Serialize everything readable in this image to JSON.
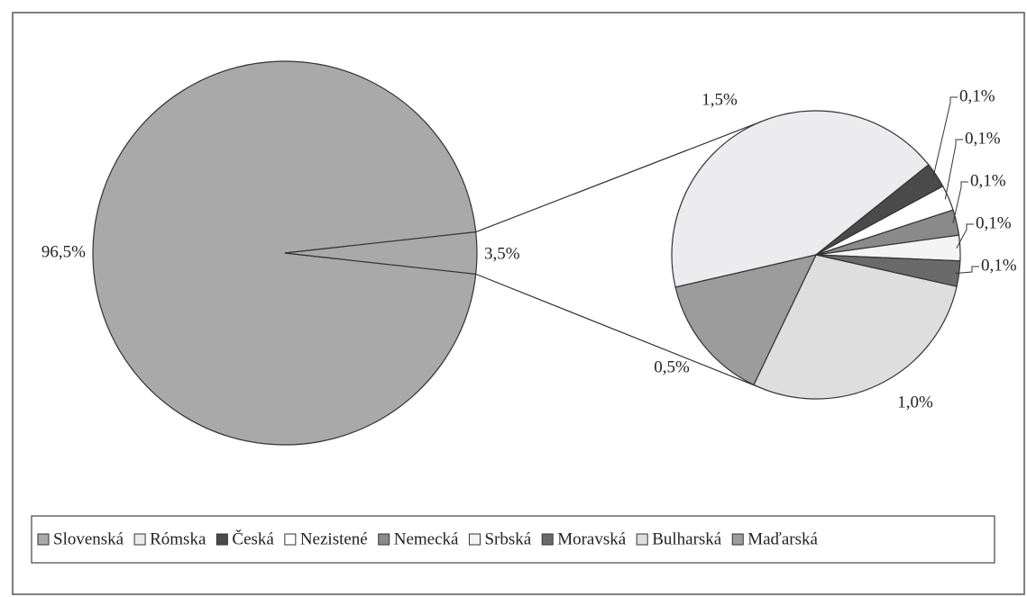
{
  "chart_data": {
    "type": "pie-of-pie",
    "categories": [
      "Slovenská",
      "Rómska",
      "Česká",
      "Nezistené",
      "Nemecká",
      "Srbská",
      "Moravská",
      "Bulharská",
      "Maďarská"
    ],
    "values": [
      96.5,
      1.5,
      0.1,
      0.1,
      0.1,
      0.1,
      0.1,
      1.0,
      0.5
    ],
    "value_labels": [
      "96,5%",
      "1,5%",
      "0,1%",
      "0,1%",
      "0,1%",
      "0,1%",
      "0,1%",
      "1,0%",
      "0,5%"
    ],
    "colors": [
      "#a9a9a9",
      "#ececee",
      "#4a4a4a",
      "#ffffff",
      "#8a8a8a",
      "#f4f4f4",
      "#6a6a6a",
      "#dedede",
      "#9c9c9c"
    ],
    "other_value": 3.5,
    "other_label": "3,5%",
    "legend": "bottom"
  }
}
